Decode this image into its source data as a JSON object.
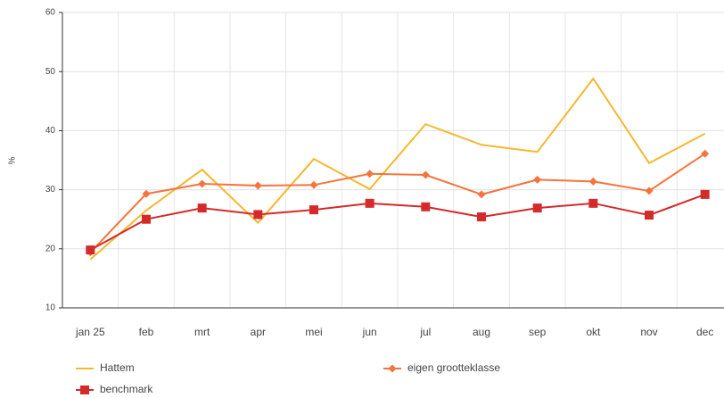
{
  "chart_data": {
    "type": "line",
    "ylabel": "%",
    "categories": [
      "jan 25",
      "feb",
      "mrt",
      "apr",
      "mei",
      "jun",
      "jul",
      "aug",
      "sep",
      "okt",
      "nov",
      "dec"
    ],
    "series": [
      {
        "name": "Hattem",
        "color": "#f5b82e",
        "marker": "none",
        "values": [
          18.2,
          26.5,
          33.4,
          24.4,
          35.2,
          30.1,
          41.1,
          37.6,
          36.4,
          48.8,
          34.5,
          39.5
        ]
      },
      {
        "name": "eigen grootteklasse",
        "color": "#f4743b",
        "marker": "diamond",
        "values": [
          19.4,
          29.3,
          31.0,
          30.7,
          30.8,
          32.7,
          32.5,
          29.2,
          31.7,
          31.4,
          29.8,
          36.1
        ]
      },
      {
        "name": "benchmark",
        "color": "#d42a2a",
        "marker": "square",
        "values": [
          19.8,
          25.0,
          26.9,
          25.8,
          26.6,
          27.7,
          27.1,
          25.4,
          26.9,
          27.7,
          25.7,
          29.2
        ]
      }
    ],
    "ylim": [
      10,
      60
    ],
    "yticks": [
      10,
      20,
      30,
      40,
      50,
      60
    ],
    "grid": true
  }
}
